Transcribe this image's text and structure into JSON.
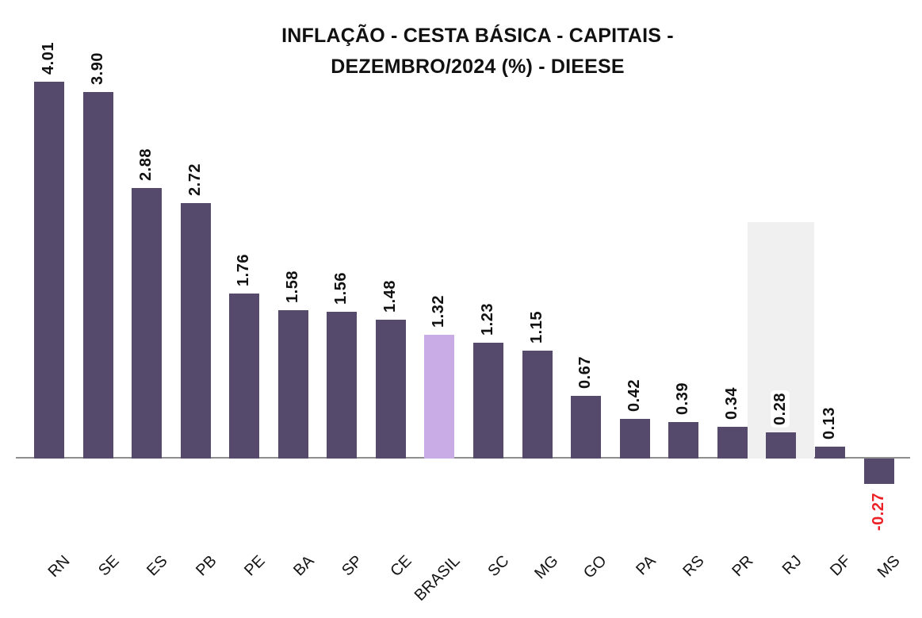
{
  "title": {
    "line1": "INFLAÇÃO - CESTA BÁSICA - CAPITAIS -",
    "line2": "DEZEMBRO/2024 (%) - DIEESE"
  },
  "chart_data": {
    "type": "bar",
    "title": "INFLAÇÃO - CESTA BÁSICA - CAPITAIS - DEZEMBRO/2024 (%) - DIEESE",
    "orientation": "vertical",
    "categories": [
      "RN",
      "SE",
      "ES",
      "PB",
      "PE",
      "BA",
      "SP",
      "CE",
      "BRASIL",
      "SC",
      "MG",
      "GO",
      "PA",
      "RS",
      "PR",
      "RJ",
      "DF",
      "MS"
    ],
    "values": [
      4.01,
      3.9,
      2.88,
      2.72,
      1.76,
      1.58,
      1.56,
      1.48,
      1.32,
      1.23,
      1.15,
      0.67,
      0.42,
      0.39,
      0.34,
      0.28,
      0.13,
      -0.27
    ],
    "labels": [
      "4.01",
      "3.90",
      "2.88",
      "2.72",
      "1.76",
      "1.58",
      "1.56",
      "1.48",
      "1.32",
      "1.23",
      "1.15",
      "0.67",
      "0.42",
      "0.39",
      "0.34",
      "0.28",
      "0.13",
      "-0.27"
    ],
    "ylim": [
      -0.5,
      4.2
    ],
    "grid": false,
    "legend": false,
    "y_axis_visible": false,
    "value_label_rotation": 90,
    "x_label_rotation": 45,
    "bar_color": "#554A6B",
    "highlight_bar": {
      "category": "BRASIL",
      "color": "#C9ACE6"
    },
    "hover_band": {
      "category": "RJ",
      "color": "#F0F0F0",
      "top_value": 2.52
    },
    "negative_label_color": "#EC2227",
    "label_color": "#111111",
    "axis_line_color": "#8F8F8F"
  }
}
